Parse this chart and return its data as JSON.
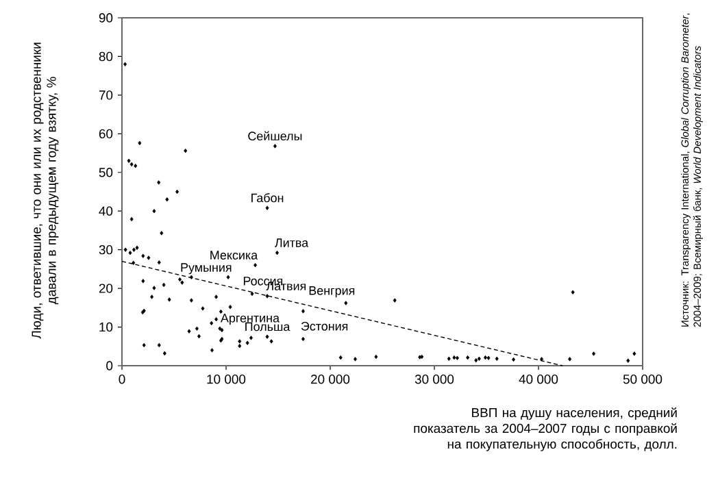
{
  "chart_data": {
    "type": "scatter",
    "ylabel": "Люди, ответившие, что они или их родственники давали в предыдущем году взятку, %",
    "xlabel": "ВВП на душу населения, средний показатель за 2004–2007 годы с поправкой на покупательную способность, долл.",
    "xlim": [
      0,
      50000
    ],
    "ylim": [
      0,
      90
    ],
    "xticks": [
      0,
      {
        "value": 10000,
        "label": "10 000"
      },
      {
        "value": 20000,
        "label": "20 000"
      },
      {
        "value": 30000,
        "label": "30 000"
      },
      {
        "value": 40000,
        "label": "40 000"
      },
      {
        "value": 50000,
        "label": "50 000"
      }
    ],
    "yticks": [
      0,
      10,
      20,
      30,
      40,
      50,
      60,
      70,
      80,
      90
    ],
    "marker": "diamond",
    "series": [
      {
        "color": "#000000",
        "x": [
          300,
          1700,
          6100,
          14700,
          660,
          930,
          1300,
          3530,
          5300,
          4330,
          3090,
          13950,
          930,
          3800,
          14900,
          340,
          790,
          1150,
          1450,
          2030,
          2560,
          1100,
          3570,
          12800,
          5560,
          5780,
          6670,
          10200,
          2030,
          3090,
          4020,
          12500,
          13950,
          2870,
          4550,
          6670,
          9050,
          21500,
          26200,
          7760,
          10400,
          2120,
          1990,
          9500,
          17400,
          8600,
          9050,
          9400,
          9600,
          7200,
          6450,
          7400,
          9600,
          9500,
          11300,
          11300,
          12050,
          12400,
          13950,
          14350,
          17400,
          2120,
          3570,
          4100,
          8650,
          21000,
          22400,
          24400,
          43300,
          28600,
          28800,
          31400,
          31900,
          32200,
          33200,
          34000,
          34300,
          34900,
          35200,
          36000,
          37600,
          40300,
          43000,
          45300,
          48600,
          49200
        ],
        "values": [
          78,
          57.6,
          55.6,
          56.8,
          53,
          52.1,
          51.7,
          47.4,
          45,
          43,
          40,
          40.8,
          37.9,
          34.3,
          29.2,
          30,
          29.2,
          30,
          30.5,
          28.4,
          27.9,
          26.6,
          26.7,
          26,
          22.3,
          21.5,
          22.9,
          22.9,
          21.9,
          20.1,
          20.9,
          18.6,
          18,
          17.8,
          17.1,
          16.9,
          17.8,
          16.2,
          16.9,
          14.8,
          15.2,
          14.2,
          13.8,
          14,
          14.1,
          11,
          12,
          9.6,
          9.2,
          9.6,
          8.9,
          7.6,
          6.9,
          6.5,
          6.3,
          5.1,
          5.9,
          7.2,
          7.5,
          6.3,
          6.9,
          5.3,
          5.3,
          3.2,
          4,
          2.1,
          1.7,
          2.3,
          19,
          2.2,
          2.3,
          1.8,
          2.1,
          2,
          2.1,
          1.4,
          1.8,
          2.1,
          2,
          1.8,
          1.6,
          1.7,
          1.7,
          3.1,
          1.3,
          3.1
        ]
      },
      {
        "type": "line",
        "color": "#000000",
        "line_style": "dashed",
        "marker": "none",
        "x": [
          0,
          42300
        ],
        "values": [
          27,
          0
        ]
      }
    ],
    "annotations": [
      {
        "text": "Сейшелы",
        "x": 14700,
        "y": 56.8
      },
      {
        "text": "Габон",
        "x": 13950,
        "y": 40.8
      },
      {
        "text": "Литва",
        "x": 14900,
        "y": 29.2
      },
      {
        "text": "Мексика",
        "x": 12800,
        "y": 26
      },
      {
        "text": "Румыния",
        "x": 10200,
        "y": 22.9
      },
      {
        "text": "Россия",
        "x": 12500,
        "y": 18.6
      },
      {
        "text": "Латвия",
        "x": 13950,
        "y": 18
      },
      {
        "text": "Венгрия",
        "x": 21500,
        "y": 16.2
      },
      {
        "text": "Аргентина",
        "x": 9050,
        "y": 12
      },
      {
        "text": "Польша",
        "x": 13950,
        "y": 7.5
      },
      {
        "text": "Эстония",
        "x": 17400,
        "y": 6.9
      },
      "Источник: Transparency International, *Global Corruption Barometer*, 2004–2009; Всемирный банк, *World Development Indicators*"
    ]
  }
}
